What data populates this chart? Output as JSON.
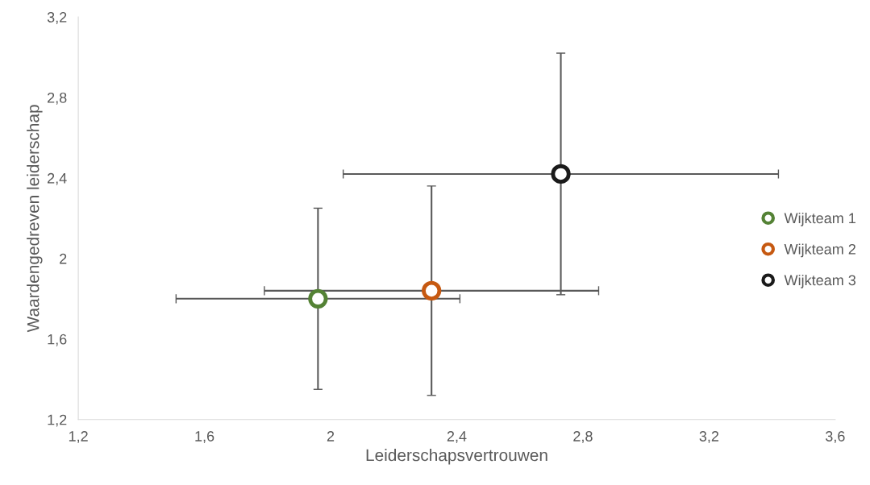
{
  "chart_data": {
    "type": "scatter",
    "xlabel": "Leiderschapsvertrouwen",
    "ylabel": "Waardengedreven leiderschap",
    "xlim": [
      1.2,
      3.6
    ],
    "xticks": [
      {
        "value": 1.2,
        "label": "1,2"
      },
      {
        "value": 1.6,
        "label": "1,6"
      },
      {
        "value": 2,
        "label": "2"
      },
      {
        "value": 2.4,
        "label": "2,4"
      },
      {
        "value": 2.8,
        "label": "2,8"
      },
      {
        "value": 3.2,
        "label": "3,2"
      },
      {
        "value": 3.6,
        "label": "3,6"
      }
    ],
    "ylim": [
      1.2,
      3.2
    ],
    "yticks": [
      {
        "value": 1.2,
        "label": "1,2"
      },
      {
        "value": 1.6,
        "label": "1,6"
      },
      {
        "value": 2,
        "label": "2"
      },
      {
        "value": 2.4,
        "label": "2,4"
      },
      {
        "value": 2.8,
        "label": "2,8"
      },
      {
        "value": 3.2,
        "label": "3,2"
      }
    ],
    "grid": false,
    "legend": "right",
    "marker": "circle",
    "series": [
      {
        "name": "Wijkteam 1",
        "color": "#548235",
        "x": [
          1.96
        ],
        "values": [
          1.8
        ],
        "xerrors": [
          0.45
        ],
        "errors": [
          0.45
        ]
      },
      {
        "name": "Wijkteam 2",
        "color": "#c65911",
        "x": [
          2.32
        ],
        "values": [
          1.84
        ],
        "xerrors": [
          0.53
        ],
        "errors": [
          0.52
        ]
      },
      {
        "name": "Wijkteam 3",
        "color": "#1a1a1a",
        "x": [
          2.73
        ],
        "values": [
          2.42
        ],
        "xerrors": [
          0.69
        ],
        "errors": [
          0.6
        ]
      }
    ]
  }
}
